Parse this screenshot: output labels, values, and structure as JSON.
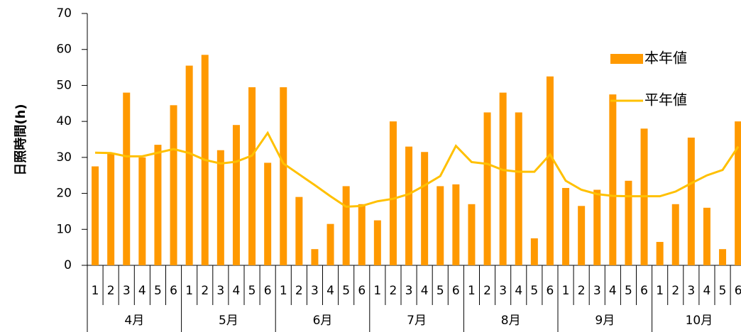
{
  "chart_data": {
    "type": "bar",
    "y_label": "日照時間(h)",
    "categories": [
      "1",
      "2",
      "3",
      "4",
      "5",
      "6",
      "1",
      "2",
      "3",
      "4",
      "5",
      "6",
      "1",
      "2",
      "3",
      "4",
      "5",
      "6",
      "1",
      "2",
      "3",
      "4",
      "5",
      "6",
      "1",
      "2",
      "3",
      "4",
      "5",
      "6",
      "1",
      "2",
      "3",
      "4",
      "5",
      "6",
      "1",
      "2",
      "3",
      "4",
      "5",
      "6"
    ],
    "groups": [
      "4月",
      "5月",
      "6月",
      "7月",
      "8月",
      "9月",
      "10月"
    ],
    "series": [
      {
        "name": "本年値",
        "type": "bar",
        "color": "#FF9900",
        "values": [
          27.5,
          31,
          48,
          30,
          33.5,
          44.5,
          55.5,
          58.5,
          32,
          39,
          49.5,
          28.5,
          49.5,
          19,
          4.5,
          11.5,
          22,
          17,
          12.5,
          40,
          33,
          31.5,
          22,
          22.5,
          17,
          42.5,
          48,
          42.5,
          7.5,
          52.5,
          21.5,
          16.5,
          21,
          47.5,
          23.5,
          38,
          6.5,
          17,
          35.5,
          16,
          4.5,
          40
        ]
      },
      {
        "name": "平年値",
        "type": "line",
        "color": "#FFC000",
        "values": [
          31.3,
          31.2,
          30.3,
          30.3,
          31.3,
          32.3,
          31.2,
          29.3,
          28.3,
          28.8,
          30.5,
          36.8,
          28.3,
          25.3,
          22.3,
          19.2,
          16.3,
          16.5,
          17.8,
          18.5,
          19.8,
          22.2,
          24.8,
          33.2,
          28.7,
          28.2,
          26.5,
          26,
          26,
          30.8,
          23.5,
          21,
          19.8,
          19.3,
          19.2,
          19.2,
          19.2,
          20.5,
          22.8,
          25,
          26.5,
          33
        ]
      }
    ],
    "ylim": [
      0,
      70
    ],
    "yticks": [
      0,
      10,
      20,
      30,
      40,
      50,
      60,
      70
    ],
    "legend": "right"
  }
}
